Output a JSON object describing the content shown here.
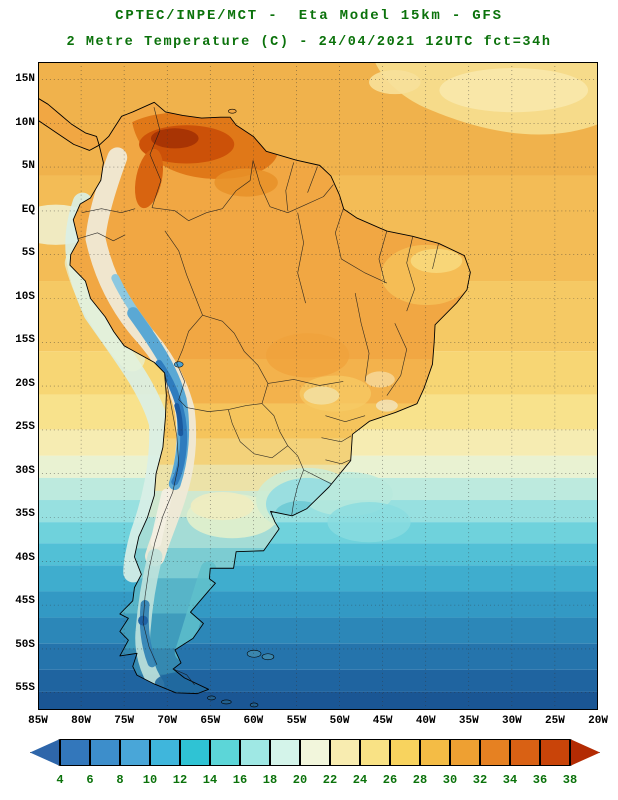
{
  "colors": {
    "title_text": "#0b720b",
    "axis_text": "#000000",
    "colorbar_text": "#0b720b",
    "background": "#ffffff",
    "map_frame": "#000000"
  },
  "header": {
    "title_line1": "CPTEC/INPE/MCT -  Eta Model 15km - GFS",
    "title_line2": "2 Metre Temperature (C) - 24/04/2021 12UTC fct=34h"
  },
  "map": {
    "lat_labels": [
      "15N",
      "10N",
      "5N",
      "EQ",
      "5S",
      "10S",
      "15S",
      "20S",
      "25S",
      "30S",
      "35S",
      "40S",
      "45S",
      "50S",
      "55S"
    ],
    "lon_labels": [
      "85W",
      "80W",
      "75W",
      "70W",
      "65W",
      "60W",
      "55W",
      "50W",
      "45W",
      "40W",
      "35W",
      "30W",
      "25W",
      "20W"
    ]
  },
  "colorbar": {
    "tick_labels": [
      "4",
      "6",
      "8",
      "10",
      "12",
      "14",
      "16",
      "18",
      "20",
      "22",
      "24",
      "26",
      "28",
      "30",
      "32",
      "34",
      "36",
      "38"
    ],
    "segment_colors": [
      "#2e66aa",
      "#3377bb",
      "#3d8ecb",
      "#49a6d8",
      "#3fb6dc",
      "#2fc3d4",
      "#5cd6d8",
      "#9fe8e4",
      "#d4f4ea",
      "#f2f6dc",
      "#f8ecb0",
      "#f9e285",
      "#f8d35e",
      "#f4bc45",
      "#eea032",
      "#e68122",
      "#d96114",
      "#c94409",
      "#b32b03"
    ]
  },
  "chart_data": {
    "type": "heatmap",
    "title": "2 Metre Temperature (C)",
    "source": "CPTEC/INPE/MCT",
    "model": "Eta Model 15km - GFS",
    "valid": "24/04/2021 12UTC fct=34h",
    "units": "C",
    "scale_values": [
      4,
      6,
      8,
      10,
      12,
      14,
      16,
      18,
      20,
      22,
      24,
      26,
      28,
      30,
      32,
      34,
      36,
      38
    ],
    "lat_range": [
      "15N",
      "55S"
    ],
    "lon_range": [
      "85W",
      "20W"
    ],
    "legend_position": "bottom",
    "grid": "dotted 5-degree"
  }
}
